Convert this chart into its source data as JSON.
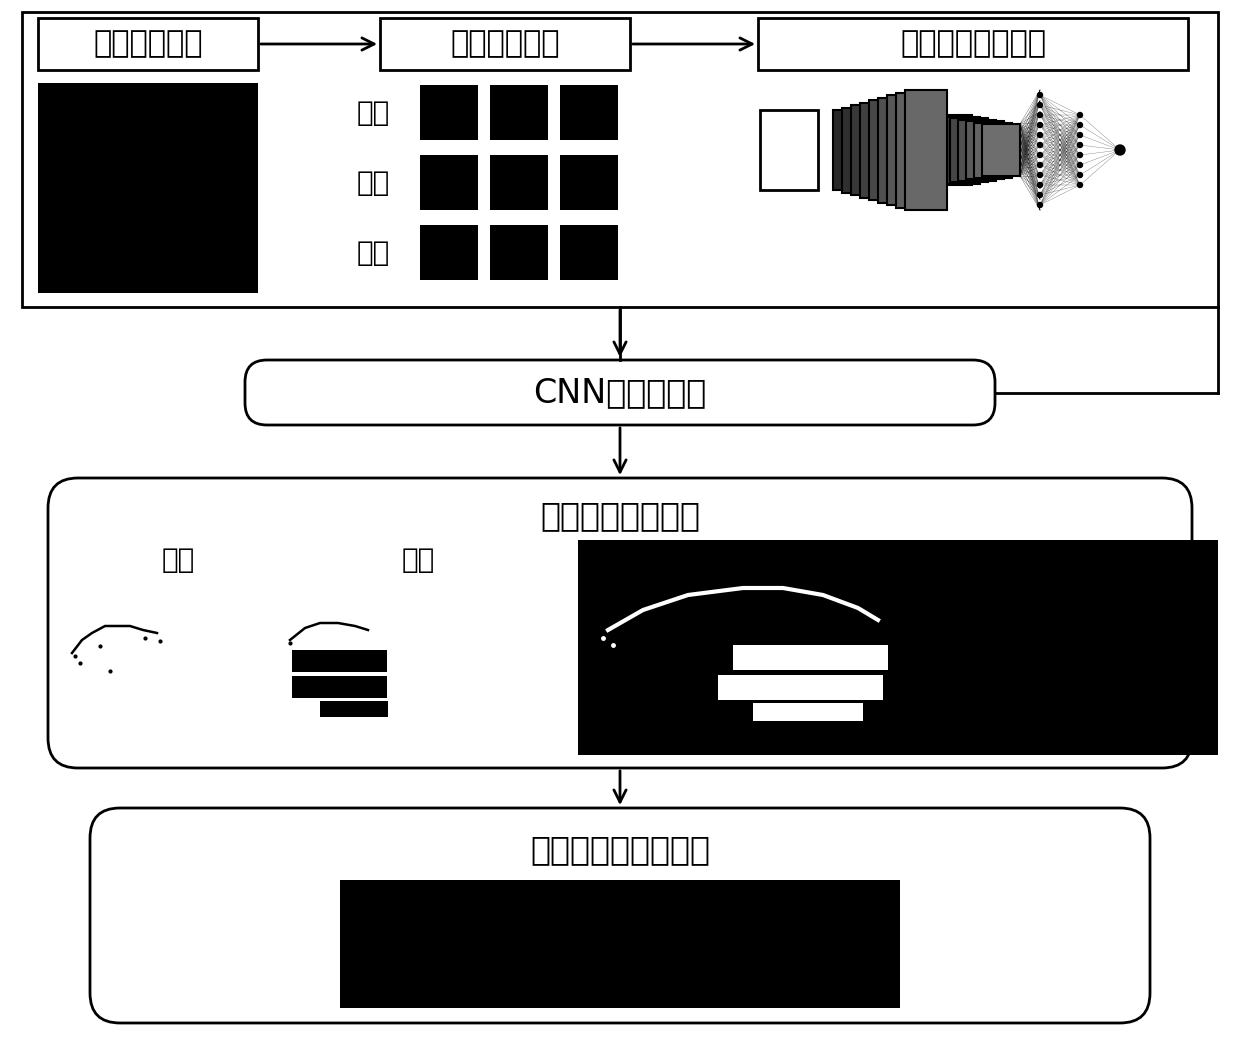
{
  "bg_color": "#ffffff",
  "box_edge_color": "#000000",
  "box_face_color": "#ffffff",
  "arrow_color": "#000000",
  "text_color": "#000000",
  "box1_text": "输入原始图像",
  "box2_text": "子单元及标签",
  "box3_text": "深度卷积神经网络",
  "box4_text": "CNN裂缝识别器",
  "box5_text": "单元类型分类预测",
  "box6_text": "裂缝二值化结果输出",
  "label_liFeng": "裂缝",
  "label_ziJi": "字迹",
  "label_beiJing": "背景",
  "label_liFeng2": "裂缝",
  "label_ziJi2": "字迹",
  "title_fontsize": 22,
  "label_fontsize": 20,
  "small_label_fontsize": 18,
  "lw": 2.0
}
